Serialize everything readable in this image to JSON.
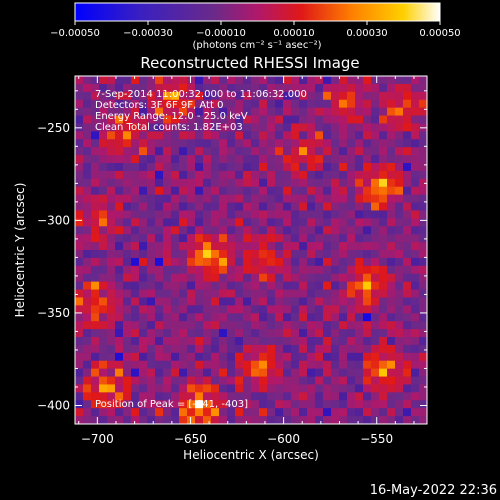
{
  "chart_data": {
    "type": "heatmap",
    "title": "Reconstructed RHESSI Image",
    "xlabel": "Heliocentric X (arcsec)",
    "ylabel": "Heliocentric Y (arcsec)",
    "xlim": [
      -712,
      -523
    ],
    "ylim": [
      -410,
      -222
    ],
    "x_ticks": [
      -700,
      -650,
      -600,
      -550
    ],
    "x_tick_labels": [
      "−700",
      "−650",
      "−600",
      "−550"
    ],
    "y_ticks": [
      -250,
      -300,
      -350,
      -400
    ],
    "y_tick_labels": [
      "−250",
      "−300",
      "−350",
      "−400"
    ],
    "colorbar": {
      "range": [
        -0.0005,
        0.0005
      ],
      "ticks": [
        -0.0005,
        -0.0003,
        -0.0001,
        0.0001,
        0.0003,
        0.0005
      ],
      "tick_labels": [
        "−0.00050",
        "−0.00030",
        "−0.00010",
        "0.00010",
        "0.00030",
        "0.00050"
      ],
      "units_label": "(photons cm⁻² s⁻¹ asec⁻²)",
      "colors": [
        "#0000ff",
        "#4a1f9e",
        "#6a2a8a",
        "#b0186a",
        "#e01818",
        "#ff8000",
        "#ffd000",
        "#ffffff"
      ]
    },
    "annotations": {
      "time": "7-Sep-2014 11:00:32.000 to 11:06:32.000",
      "detectors": "Detectors: 3F 6F 9F, Att 0",
      "energy": "Energy Range: 12.0 - 25.0 keV",
      "clean": "Clean     Total counts: 1.82E+03",
      "peak": "Position of Peak = [-641, -403]"
    },
    "bright_sources": [
      {
        "x": -645,
        "y": -400,
        "level": 1.0
      },
      {
        "x": -695,
        "y": -390,
        "level": 0.85
      },
      {
        "x": -640,
        "y": -320,
        "level": 0.9
      },
      {
        "x": -555,
        "y": -335,
        "level": 0.85
      },
      {
        "x": -545,
        "y": -380,
        "level": 0.8
      },
      {
        "x": -548,
        "y": -282,
        "level": 0.9
      },
      {
        "x": -685,
        "y": -255,
        "level": 0.7
      },
      {
        "x": -660,
        "y": -235,
        "level": 0.7
      },
      {
        "x": -612,
        "y": -380,
        "level": 0.7
      },
      {
        "x": -700,
        "y": -345,
        "level": 0.75
      },
      {
        "x": -590,
        "y": -262,
        "level": 0.55
      },
      {
        "x": -565,
        "y": -235,
        "level": 0.55
      },
      {
        "x": -610,
        "y": -320,
        "level": 0.55
      },
      {
        "x": -700,
        "y": -300,
        "level": 0.55
      },
      {
        "x": -535,
        "y": -240,
        "level": 0.6
      }
    ]
  },
  "footer": {
    "timestamp": "16-May-2022 22:36"
  }
}
